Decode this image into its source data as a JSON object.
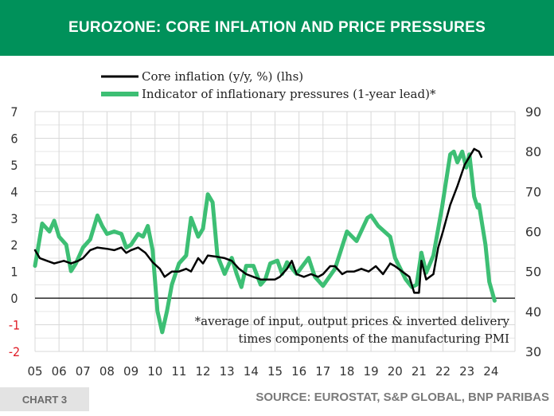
{
  "header": {
    "title": "EUROZONE: CORE INFLATION AND PRICE PRESSURES"
  },
  "footer": {
    "chart_label": "CHART 3",
    "source": "SOURCE: EUROSTAT, S&P GLOBAL, BNP PARIBAS"
  },
  "colors": {
    "header": "#00915a",
    "core": "#000000",
    "indicator": "#3dbf74",
    "negative_tick": "#e0202a"
  },
  "chart_data": {
    "type": "line",
    "title": "EUROZONE: CORE INFLATION AND PRICE PRESSURES",
    "x_range": [
      2005,
      2025
    ],
    "x_ticks": [
      "05",
      "06",
      "07",
      "08",
      "09",
      "10",
      "11",
      "12",
      "13",
      "14",
      "15",
      "16",
      "17",
      "18",
      "19",
      "20",
      "21",
      "22",
      "23",
      "24"
    ],
    "y_left": {
      "range": [
        -2,
        7
      ],
      "ticks": [
        "-2",
        "-1",
        "0",
        "1",
        "2",
        "3",
        "4",
        "5",
        "6",
        "7"
      ]
    },
    "y_right": {
      "range": [
        30,
        90
      ],
      "ticks": [
        "30",
        "40",
        "50",
        "60",
        "70",
        "80",
        "90"
      ]
    },
    "grid": true,
    "legend_position": "top-center",
    "annotation": [
      "*average of input, output prices & inverted delivery",
      "times components of the manufacturing PMI"
    ],
    "series": [
      {
        "name": "Core inflation (y/y, %) (lhs)",
        "axis": "left",
        "x": [
          2005.0,
          2005.2,
          2005.5,
          2005.8,
          2006.2,
          2006.5,
          2006.8,
          2007.0,
          2007.3,
          2007.6,
          2008.0,
          2008.3,
          2008.6,
          2008.8,
          2009.0,
          2009.3,
          2009.6,
          2009.9,
          2010.2,
          2010.4,
          2010.7,
          2011.0,
          2011.3,
          2011.5,
          2011.8,
          2012.0,
          2012.2,
          2012.6,
          2012.9,
          2013.2,
          2013.5,
          2013.8,
          2014.1,
          2014.4,
          2014.7,
          2015.0,
          2015.2,
          2015.5,
          2015.7,
          2015.9,
          2016.2,
          2016.5,
          2016.8,
          2017.0,
          2017.3,
          2017.5,
          2017.8,
          2018.0,
          2018.3,
          2018.6,
          2018.9,
          2019.2,
          2019.5,
          2019.8,
          2020.0,
          2020.3,
          2020.6,
          2020.8,
          2021.0,
          2021.1,
          2021.3,
          2021.6,
          2021.8,
          2022.0,
          2022.3,
          2022.6,
          2022.9,
          2023.1,
          2023.3,
          2023.5,
          2023.6
        ],
        "values": [
          1.8,
          1.5,
          1.4,
          1.3,
          1.4,
          1.3,
          1.4,
          1.5,
          1.8,
          1.9,
          1.85,
          1.8,
          1.9,
          1.7,
          1.8,
          1.9,
          1.7,
          1.35,
          1.1,
          0.8,
          1.0,
          1.0,
          1.1,
          1.0,
          1.5,
          1.3,
          1.6,
          1.55,
          1.5,
          1.4,
          1.1,
          0.9,
          0.8,
          0.7,
          0.7,
          0.7,
          0.8,
          1.1,
          1.4,
          0.9,
          0.8,
          0.9,
          0.8,
          0.9,
          1.2,
          1.2,
          0.9,
          1.0,
          1.0,
          1.1,
          1.0,
          1.2,
          0.9,
          1.3,
          1.2,
          1.0,
          0.8,
          0.2,
          0.2,
          1.4,
          0.7,
          0.9,
          1.9,
          2.5,
          3.5,
          4.2,
          5.0,
          5.3,
          5.6,
          5.5,
          5.3
        ]
      },
      {
        "name": "Indicator of inflationary pressures (1-year lead)*",
        "axis": "right",
        "x": [
          2005.0,
          2005.3,
          2005.6,
          2005.8,
          2006.0,
          2006.3,
          2006.5,
          2006.7,
          2007.0,
          2007.3,
          2007.5,
          2007.6,
          2007.8,
          2008.0,
          2008.3,
          2008.6,
          2008.8,
          2009.0,
          2009.3,
          2009.5,
          2009.7,
          2009.9,
          2010.1,
          2010.3,
          2010.5,
          2010.7,
          2011.0,
          2011.3,
          2011.5,
          2011.8,
          2012.0,
          2012.2,
          2012.4,
          2012.6,
          2012.9,
          2013.2,
          2013.4,
          2013.6,
          2013.8,
          2014.1,
          2014.4,
          2014.6,
          2014.8,
          2015.1,
          2015.3,
          2015.5,
          2015.9,
          2016.4,
          2016.66,
          2017.0,
          2017.5,
          2018.0,
          2018.4,
          2018.85,
          2019.0,
          2019.3,
          2019.8,
          2020.0,
          2020.44,
          2020.7,
          2020.9,
          2021.1,
          2021.3,
          2021.6,
          2021.96,
          2022.3,
          2022.45,
          2022.6,
          2022.8,
          2022.97,
          2023.1,
          2023.3,
          2023.44,
          2023.5,
          2023.77,
          2023.93,
          2024.15
        ],
        "values": [
          51.4,
          62.0,
          60.0,
          62.7,
          58.7,
          56.7,
          50.1,
          52.0,
          56.0,
          58.0,
          62.0,
          64.0,
          61.4,
          59.4,
          60.0,
          59.4,
          56.0,
          56.7,
          59.4,
          58.7,
          61.4,
          55.4,
          40.1,
          34.8,
          40.1,
          46.7,
          52.0,
          54.0,
          63.4,
          58.7,
          60.7,
          69.3,
          67.3,
          54.0,
          49.4,
          53.4,
          49.4,
          46.1,
          51.4,
          51.4,
          46.7,
          48.1,
          52.0,
          52.7,
          49.4,
          52.3,
          49.4,
          53.4,
          48.7,
          46.4,
          50.7,
          60.0,
          57.6,
          63.4,
          64.0,
          61.4,
          58.7,
          53.4,
          48.1,
          46.1,
          46.7,
          54.7,
          49.7,
          54.0,
          66.0,
          79.3,
          80.0,
          77.3,
          80.0,
          76.0,
          79.3,
          68.7,
          66.0,
          66.7,
          56.7,
          47.4,
          42.7
        ]
      }
    ]
  }
}
